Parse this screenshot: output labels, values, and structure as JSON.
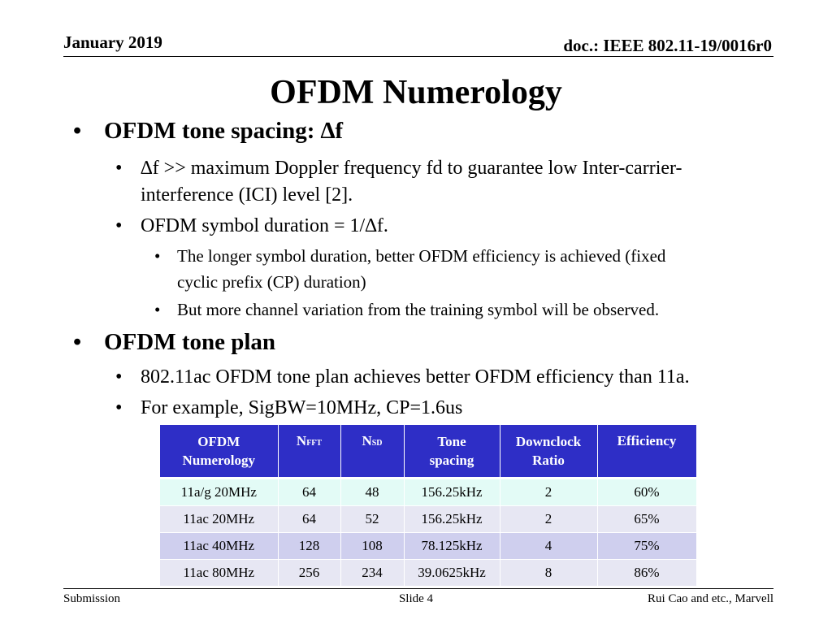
{
  "header": {
    "date": "January 2019",
    "doc_id": "doc.: IEEE 802.11-19/0016r0"
  },
  "title": "OFDM Numerology",
  "bullets": {
    "b1": "OFDM tone spacing: ∆f",
    "b1_1_line1": "∆f >> maximum Doppler frequency fd to guarantee low Inter-carrier-",
    "b1_1_line2": "interference (ICI) level [2].",
    "b1_2": "OFDM symbol duration = 1/∆f.",
    "b1_2_1_line1": "The longer symbol duration, better OFDM efficiency is achieved (fixed",
    "b1_2_1_line2": "cyclic prefix (CP) duration)",
    "b1_2_2": "But more channel variation from the training symbol will be observed.",
    "b2": "OFDM tone plan",
    "b2_1": "802.11ac OFDM tone plan achieves better OFDM efficiency than 11a.",
    "b2_2": "For example, SigBW=10MHz, CP=1.6us",
    "bullet_char": "•"
  },
  "table": {
    "headers": {
      "numerology_line1": "OFDM",
      "numerology_line2": "Numerology",
      "nfft_main": "N",
      "nfft_sub": "FFT",
      "nsd_main": "N",
      "nsd_sub": "SD",
      "tone_line1": "Tone",
      "tone_line2": "spacing",
      "downclock_line1": "Downclock",
      "downclock_line2": "Ratio",
      "efficiency": "Efficiency"
    },
    "rows": [
      [
        "11a/g 20MHz",
        "64",
        "48",
        "156.25kHz",
        "2",
        "60%"
      ],
      [
        "11ac 20MHz",
        "64",
        "52",
        "156.25kHz",
        "2",
        "65%"
      ],
      [
        "11ac 40MHz",
        "128",
        "108",
        "78.125kHz",
        "4",
        "75%"
      ],
      [
        "11ac 80MHz",
        "256",
        "234",
        "39.0625kHz",
        "8",
        "86%"
      ]
    ],
    "colors": {
      "header_bg": "#2e2ec6",
      "row_highlight": "#e3fbf6",
      "row_light": "#e7e7f3",
      "row_dark": "#cfcfee"
    }
  },
  "footer": {
    "left": "Submission",
    "center": "Slide 4",
    "right": "Rui Cao and etc., Marvell"
  }
}
